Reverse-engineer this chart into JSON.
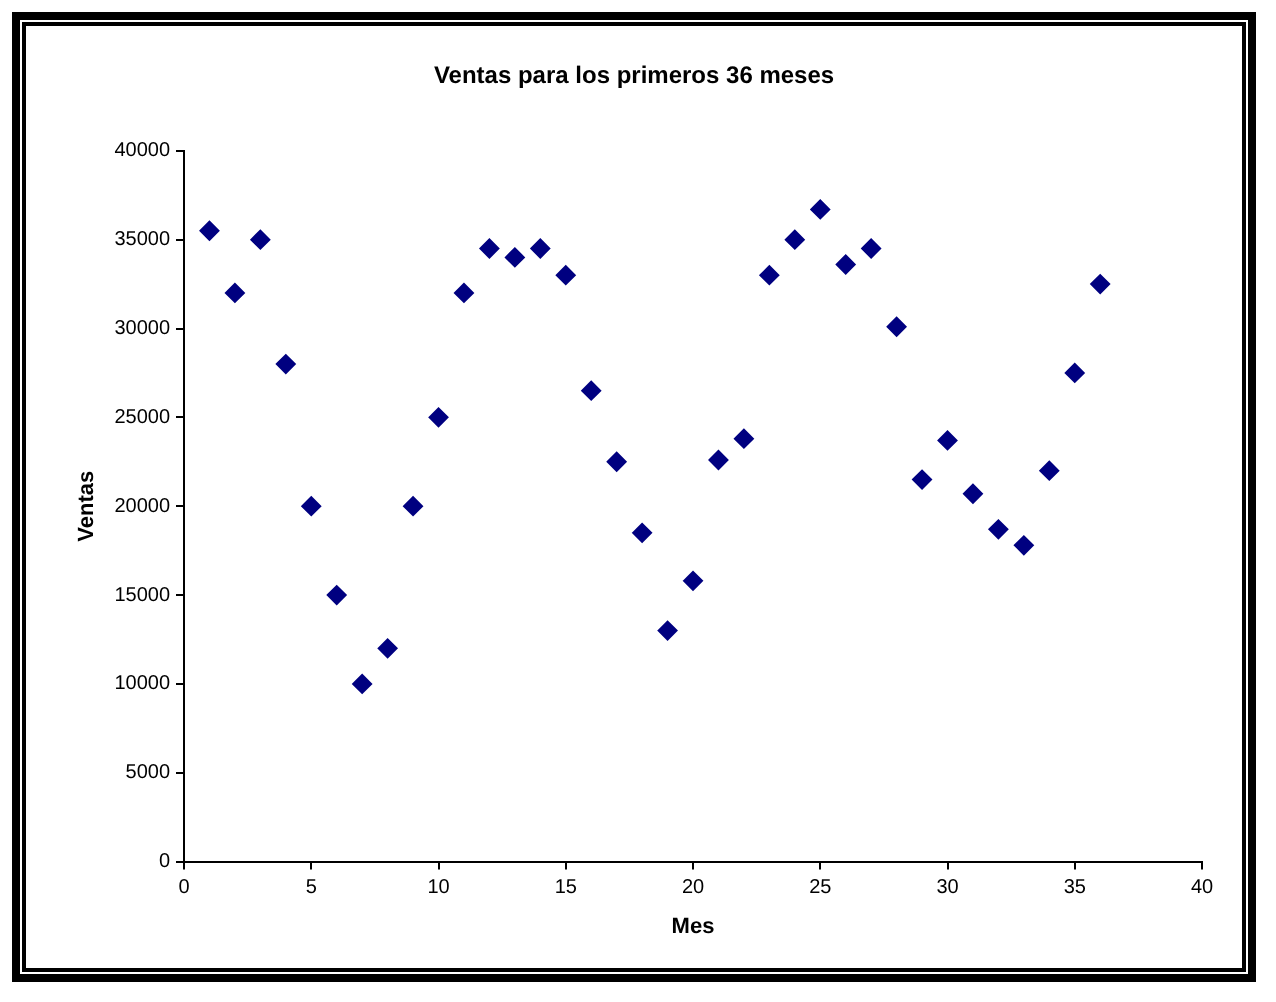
{
  "chart_data": {
    "type": "scatter",
    "title": "Ventas para los primeros 36 meses",
    "xlabel": "Mes",
    "ylabel": "Ventas",
    "x": [
      1,
      2,
      3,
      4,
      5,
      6,
      7,
      8,
      9,
      10,
      11,
      12,
      13,
      14,
      15,
      16,
      17,
      18,
      19,
      20,
      21,
      22,
      23,
      24,
      25,
      26,
      27,
      28,
      29,
      30,
      31,
      32,
      33,
      34,
      35,
      36
    ],
    "series": [
      {
        "color": "#000080",
        "values": [
          35500,
          32000,
          35000,
          28000,
          20000,
          15000,
          10000,
          12000,
          20000,
          25000,
          32000,
          34500,
          34000,
          34500,
          33000,
          26500,
          22500,
          18500,
          13000,
          15800,
          22600,
          23800,
          33000,
          35000,
          36700,
          33600,
          34500,
          30100,
          21500,
          23700,
          20700,
          18700,
          17800,
          22000,
          27500,
          32500
        ]
      }
    ],
    "xlim": [
      0,
      40
    ],
    "xticks": [
      0,
      5,
      10,
      15,
      20,
      25,
      30,
      35,
      40
    ],
    "ylim": [
      0,
      40000
    ],
    "yticks": [
      0,
      5000,
      10000,
      15000,
      20000,
      25000,
      30000,
      35000,
      40000
    ],
    "marker": "diamond",
    "grid": false,
    "legend": false
  }
}
